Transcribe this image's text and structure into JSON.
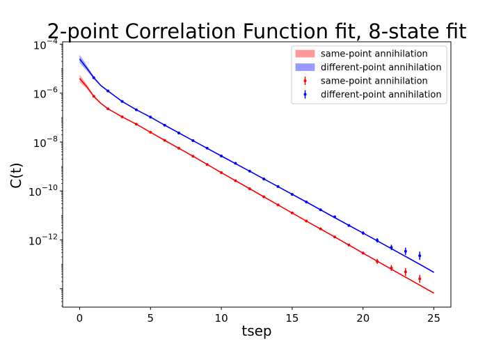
{
  "chart_data": {
    "type": "line",
    "title": "2-point Correlation Function fit, 8-state fit",
    "xlabel": "tsep",
    "ylabel": "C(t)",
    "xlim": [
      -1.2,
      26.2
    ],
    "ylim_log10": [
      -14.75,
      -3.9
    ],
    "yscale": "log",
    "grid": false,
    "legend_position": "top-right",
    "x_ticks": [
      {
        "value": 0,
        "label": "0"
      },
      {
        "value": 5,
        "label": "5"
      },
      {
        "value": 10,
        "label": "10"
      },
      {
        "value": 15,
        "label": "15"
      },
      {
        "value": 20,
        "label": "20"
      },
      {
        "value": 25,
        "label": "25"
      }
    ],
    "y_ticks": [
      {
        "exp": -4,
        "base": "10",
        "sup": "−4"
      },
      {
        "exp": -6,
        "base": "10",
        "sup": "−6"
      },
      {
        "exp": -8,
        "base": "10",
        "sup": "−8"
      },
      {
        "exp": -10,
        "base": "10",
        "sup": "−10"
      },
      {
        "exp": -12,
        "base": "10",
        "sup": "−12"
      }
    ],
    "legend": [
      {
        "kind": "band",
        "label": "same-point annihilation",
        "color": "#ff9999"
      },
      {
        "kind": "band",
        "label": "different-point annihilation",
        "color": "#9999ff"
      },
      {
        "kind": "points",
        "label": "same-point annihilation",
        "color": "#ff0000"
      },
      {
        "kind": "points",
        "label": "different-point annihilation",
        "color": "#0000ff"
      }
    ],
    "fit_curves": [
      {
        "color": "#ff0000",
        "band_color": "#ff9999",
        "x": [
          0,
          0.5,
          1,
          1.5,
          2,
          3,
          4,
          5,
          6,
          8,
          10,
          12,
          14,
          16,
          18,
          20,
          22,
          24,
          25
        ],
        "log10_y": [
          -5.4,
          -5.73,
          -6.13,
          -6.42,
          -6.64,
          -6.97,
          -7.27,
          -7.6,
          -7.93,
          -8.58,
          -9.25,
          -9.91,
          -10.57,
          -11.23,
          -11.88,
          -12.54,
          -13.2,
          -13.85,
          -14.18
        ],
        "band_log10_halfwidth": [
          0.15,
          0.09,
          0.04,
          0.025,
          0.02,
          0.015,
          0.012,
          0.012,
          0.012,
          0.012,
          0.012,
          0.012,
          0.014,
          0.016,
          0.018,
          0.02,
          0.022,
          0.025,
          0.027
        ]
      },
      {
        "color": "#0000ff",
        "band_color": "#9999ff",
        "x": [
          0,
          0.5,
          1,
          1.5,
          2,
          3,
          4,
          5,
          6,
          8,
          10,
          12,
          14,
          16,
          18,
          20,
          22,
          24,
          25
        ],
        "log10_y": [
          -4.6,
          -4.97,
          -5.37,
          -5.69,
          -5.91,
          -6.34,
          -6.68,
          -6.98,
          -7.31,
          -7.94,
          -8.57,
          -9.19,
          -9.82,
          -10.45,
          -11.09,
          -11.72,
          -12.36,
          -13.0,
          -13.33
        ],
        "band_log10_halfwidth": [
          0.17,
          0.11,
          0.05,
          0.03,
          0.02,
          0.015,
          0.012,
          0.012,
          0.012,
          0.012,
          0.012,
          0.012,
          0.014,
          0.016,
          0.018,
          0.02,
          0.022,
          0.025,
          0.027
        ]
      }
    ],
    "series": [
      {
        "name": "same-point annihilation",
        "color": "#ff0000",
        "x": [
          1,
          2,
          3,
          4,
          5,
          6,
          7,
          8,
          9,
          10,
          11,
          12,
          13,
          14,
          15,
          16,
          17,
          18,
          19,
          20,
          21,
          22,
          23,
          24
        ],
        "log10_y": [
          -6.13,
          -6.64,
          -6.97,
          -7.27,
          -7.6,
          -7.93,
          -8.25,
          -8.58,
          -8.92,
          -9.25,
          -9.58,
          -9.91,
          -10.24,
          -10.57,
          -10.9,
          -11.23,
          -11.55,
          -11.88,
          -12.21,
          -12.54,
          -12.88,
          -13.15,
          -13.31,
          -13.59
        ],
        "log10_err": [
          0.02,
          0.02,
          0.02,
          0.02,
          0.02,
          0.02,
          0.02,
          0.02,
          0.02,
          0.02,
          0.02,
          0.02,
          0.02,
          0.02,
          0.02,
          0.02,
          0.03,
          0.03,
          0.05,
          0.06,
          0.1,
          0.12,
          0.16,
          0.16
        ]
      },
      {
        "name": "different-point annihilation",
        "color": "#0000ff",
        "x": [
          1,
          2,
          3,
          4,
          5,
          6,
          7,
          8,
          9,
          10,
          11,
          12,
          13,
          14,
          15,
          16,
          17,
          18,
          19,
          20,
          21,
          22,
          23,
          24
        ],
        "log10_y": [
          -5.37,
          -5.91,
          -6.34,
          -6.68,
          -6.98,
          -7.31,
          -7.63,
          -7.94,
          -8.25,
          -8.57,
          -8.87,
          -9.19,
          -9.51,
          -9.82,
          -10.14,
          -10.45,
          -10.77,
          -11.06,
          -11.41,
          -11.72,
          -12.02,
          -12.31,
          -12.47,
          -12.65
        ],
        "log10_err": [
          0.02,
          0.02,
          0.02,
          0.02,
          0.02,
          0.02,
          0.02,
          0.02,
          0.02,
          0.02,
          0.02,
          0.02,
          0.02,
          0.02,
          0.02,
          0.02,
          0.02,
          0.03,
          0.05,
          0.07,
          0.09,
          0.11,
          0.15,
          0.17
        ]
      }
    ]
  }
}
